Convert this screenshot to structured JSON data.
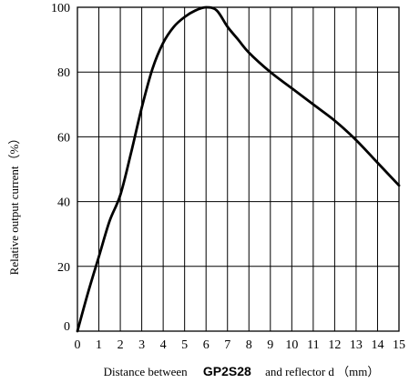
{
  "chart_data": {
    "type": "line",
    "title": "",
    "xlabel": {
      "prefix": "Distance between",
      "emphasis": "GP2S28",
      "suffix": "and reflector d （mm）"
    },
    "ylabel": "Relative output current（%）",
    "xlim": [
      0,
      15
    ],
    "ylim": [
      0,
      100
    ],
    "x_ticks": [
      "0",
      "1",
      "2",
      "3",
      "4",
      "5",
      "6",
      "7",
      "8",
      "9",
      "10",
      "11",
      "12",
      "13",
      "14",
      "15"
    ],
    "y_ticks": [
      "0",
      "20",
      "40",
      "60",
      "80",
      "100"
    ],
    "grid": true,
    "legend": "none",
    "line_color": "#000000",
    "series": [
      {
        "x": [
          0,
          0.5,
          1,
          1.5,
          2,
          2.5,
          3,
          3.5,
          4,
          4.5,
          5,
          5.5,
          6,
          6.5,
          7,
          7.5,
          8,
          9,
          10,
          11,
          12,
          13,
          14,
          15
        ],
        "values": [
          0,
          12,
          23,
          34,
          42,
          55,
          69,
          81,
          89,
          94,
          97,
          99,
          100,
          99,
          94,
          90,
          86,
          80,
          75,
          70,
          65,
          59,
          52,
          45
        ]
      }
    ]
  }
}
